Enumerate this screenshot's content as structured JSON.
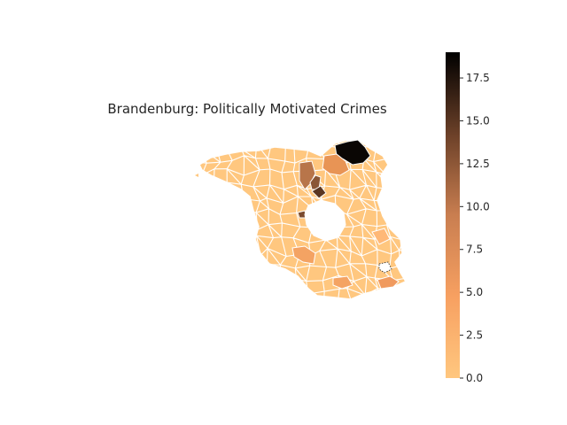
{
  "figure": {
    "title": "Brandenburg: Politically Motivated Crimes"
  },
  "colorbar": {
    "min": 0,
    "max": 19,
    "colormap": "copper_r",
    "color_low": "#ffc77f",
    "color_mid": "#c97e50",
    "color_high": "#000000",
    "ticks": [
      {
        "value": 0.0,
        "label": "0.0"
      },
      {
        "value": 2.5,
        "label": "2.5"
      },
      {
        "value": 5.0,
        "label": "5.0"
      },
      {
        "value": 7.5,
        "label": "7.5"
      },
      {
        "value": 10.0,
        "label": "10.0"
      },
      {
        "value": 12.5,
        "label": "12.5"
      },
      {
        "value": 15.0,
        "label": "15.0"
      },
      {
        "value": 17.5,
        "label": "17.5"
      }
    ]
  },
  "map": {
    "region": "Brandenburg",
    "border_color": "#ffffff",
    "background": "#ffffff",
    "highlighted_values": [
      19,
      11,
      7,
      13,
      8,
      9,
      6
    ]
  }
}
